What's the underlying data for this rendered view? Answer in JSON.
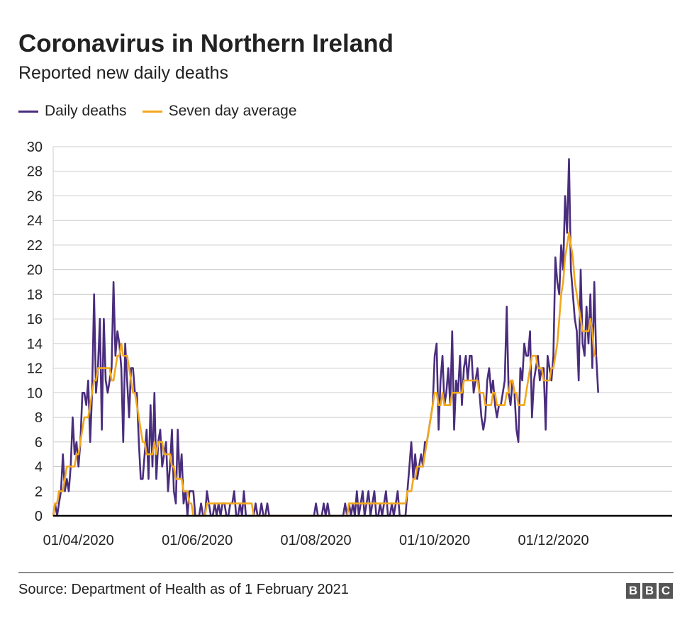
{
  "title": "Coronavirus in Northern Ireland",
  "subtitle": "Reported new daily deaths",
  "source": "Source: Department of Health as of 1 February 2021",
  "logo": [
    "B",
    "B",
    "C"
  ],
  "colors": {
    "daily": "#4a2d7d",
    "average": "#f2a81d",
    "grid": "#cccccc",
    "axis": "#000000"
  },
  "chart_data": {
    "type": "line",
    "ylim": [
      0,
      30
    ],
    "yticks": [
      0,
      2,
      4,
      6,
      8,
      10,
      12,
      14,
      16,
      18,
      20,
      22,
      24,
      26,
      28,
      30
    ],
    "xlim": [
      "2020-03-19",
      "2021-01-31"
    ],
    "xticks": [
      {
        "date": "2020-04-01",
        "label": "01/04/2020"
      },
      {
        "date": "2020-06-01",
        "label": "01/06/2020"
      },
      {
        "date": "2020-08-01",
        "label": "01/08/2020"
      },
      {
        "date": "2020-10-01",
        "label": "01/10/2020"
      },
      {
        "date": "2020-12-01",
        "label": "01/12/2020"
      }
    ],
    "legend_position": "top-left",
    "grid": true,
    "series": [
      {
        "name": "Daily deaths",
        "start_date": "2020-03-19",
        "values": [
          0,
          1,
          0,
          1,
          2,
          5,
          2,
          3,
          2,
          4,
          8,
          5,
          6,
          4,
          6,
          10,
          10,
          9,
          11,
          6,
          10,
          18,
          10,
          12,
          16,
          7,
          16,
          11,
          10,
          11,
          12,
          19,
          13,
          15,
          14,
          12,
          6,
          14,
          11,
          8,
          12,
          12,
          10,
          10,
          6,
          3,
          3,
          5,
          7,
          3,
          9,
          4,
          10,
          3,
          6,
          7,
          4,
          5,
          6,
          2,
          4,
          7,
          2,
          1,
          7,
          3,
          5,
          1,
          2,
          0,
          2,
          2,
          2,
          0,
          0,
          0,
          1,
          0,
          0,
          2,
          1,
          0,
          0,
          1,
          0,
          1,
          0,
          1,
          1,
          0,
          0,
          1,
          1,
          2,
          0,
          0,
          1,
          0,
          2,
          0,
          0,
          0,
          0,
          0,
          1,
          0,
          0,
          1,
          0,
          0,
          1,
          0,
          0,
          0,
          0,
          0,
          0,
          0,
          0,
          0,
          0,
          0,
          0,
          0,
          0,
          0,
          0,
          0,
          0,
          0,
          0,
          0,
          0,
          0,
          0,
          1,
          0,
          0,
          0,
          1,
          0,
          1,
          0,
          0,
          0,
          0,
          0,
          0,
          0,
          0,
          1,
          0,
          1,
          0,
          1,
          0,
          2,
          0,
          1,
          2,
          0,
          1,
          2,
          0,
          1,
          2,
          0,
          0,
          1,
          0,
          1,
          2,
          0,
          0,
          1,
          0,
          1,
          2,
          0,
          0,
          0,
          0,
          2,
          4,
          6,
          3,
          5,
          3,
          4,
          5,
          4,
          6,
          6,
          7,
          8,
          9,
          13,
          14,
          7,
          11,
          13,
          9,
          10,
          12,
          9,
          15,
          7,
          11,
          10,
          13,
          9,
          12,
          13,
          11,
          13,
          13,
          10,
          11,
          12,
          10,
          8,
          7,
          8,
          11,
          12,
          10,
          11,
          9,
          8,
          9,
          9,
          10,
          11,
          17,
          10,
          9,
          11,
          10,
          7,
          6,
          12,
          11,
          14,
          13,
          13,
          15,
          8,
          11,
          12,
          13,
          11,
          12,
          12,
          7,
          13,
          12,
          11,
          13,
          21,
          19,
          18,
          22,
          20,
          26,
          23,
          29,
          20,
          18,
          16,
          15,
          11,
          20,
          14,
          13,
          17,
          14,
          18,
          12,
          19,
          13,
          10
        ]
      },
      {
        "name": "Seven day average",
        "start_date": "2020-03-19",
        "values": [
          0,
          1,
          1,
          2,
          2,
          2,
          3,
          4,
          4,
          4,
          4,
          4,
          5,
          5,
          6,
          7,
          8,
          8,
          8,
          9,
          10,
          11,
          11,
          12,
          12,
          12,
          12,
          12,
          12,
          12,
          11,
          11,
          12,
          13,
          13,
          14,
          13,
          13,
          13,
          12,
          11,
          10,
          10,
          9,
          8,
          7,
          6,
          6,
          5,
          5,
          5,
          5,
          6,
          5,
          6,
          6,
          6,
          5,
          5,
          5,
          5,
          4,
          4,
          3,
          3,
          3,
          3,
          2,
          2,
          2,
          1,
          1,
          0,
          0,
          0,
          0,
          0,
          0,
          0,
          1,
          1,
          1,
          1,
          1,
          1,
          1,
          1,
          1,
          1,
          1,
          1,
          1,
          1,
          1,
          1,
          1,
          1,
          1,
          1,
          1,
          1,
          1,
          1,
          0,
          0,
          0,
          0,
          0,
          0,
          0,
          0,
          0,
          0,
          0,
          0,
          0,
          0,
          0,
          0,
          0,
          0,
          0,
          0,
          0,
          0,
          0,
          0,
          0,
          0,
          0,
          0,
          0,
          0,
          0,
          0,
          0,
          0,
          0,
          0,
          0,
          0,
          0,
          0,
          0,
          0,
          0,
          0,
          0,
          0,
          0,
          0,
          0,
          1,
          1,
          1,
          1,
          1,
          1,
          1,
          1,
          1,
          1,
          1,
          1,
          1,
          1,
          1,
          1,
          1,
          1,
          1,
          1,
          1,
          1,
          1,
          1,
          1,
          1,
          1,
          1,
          1,
          1,
          2,
          2,
          2,
          3,
          3,
          4,
          4,
          4,
          4,
          5,
          6,
          7,
          8,
          9,
          10,
          10,
          9,
          9,
          10,
          9,
          9,
          9,
          9,
          10,
          10,
          10,
          10,
          10,
          10,
          11,
          11,
          11,
          11,
          11,
          11,
          11,
          11,
          10,
          10,
          10,
          9,
          9,
          9,
          9,
          10,
          10,
          9,
          9,
          9,
          9,
          9,
          10,
          10,
          11,
          11,
          10,
          10,
          9,
          9,
          9,
          9,
          10,
          11,
          12,
          13,
          13,
          13,
          12,
          12,
          12,
          11,
          11,
          11,
          11,
          12,
          12,
          13,
          14,
          16,
          18,
          19,
          21,
          22,
          23,
          22,
          21,
          19,
          18,
          17,
          16,
          15,
          15,
          15,
          15,
          16,
          15,
          13,
          13
        ]
      }
    ]
  }
}
